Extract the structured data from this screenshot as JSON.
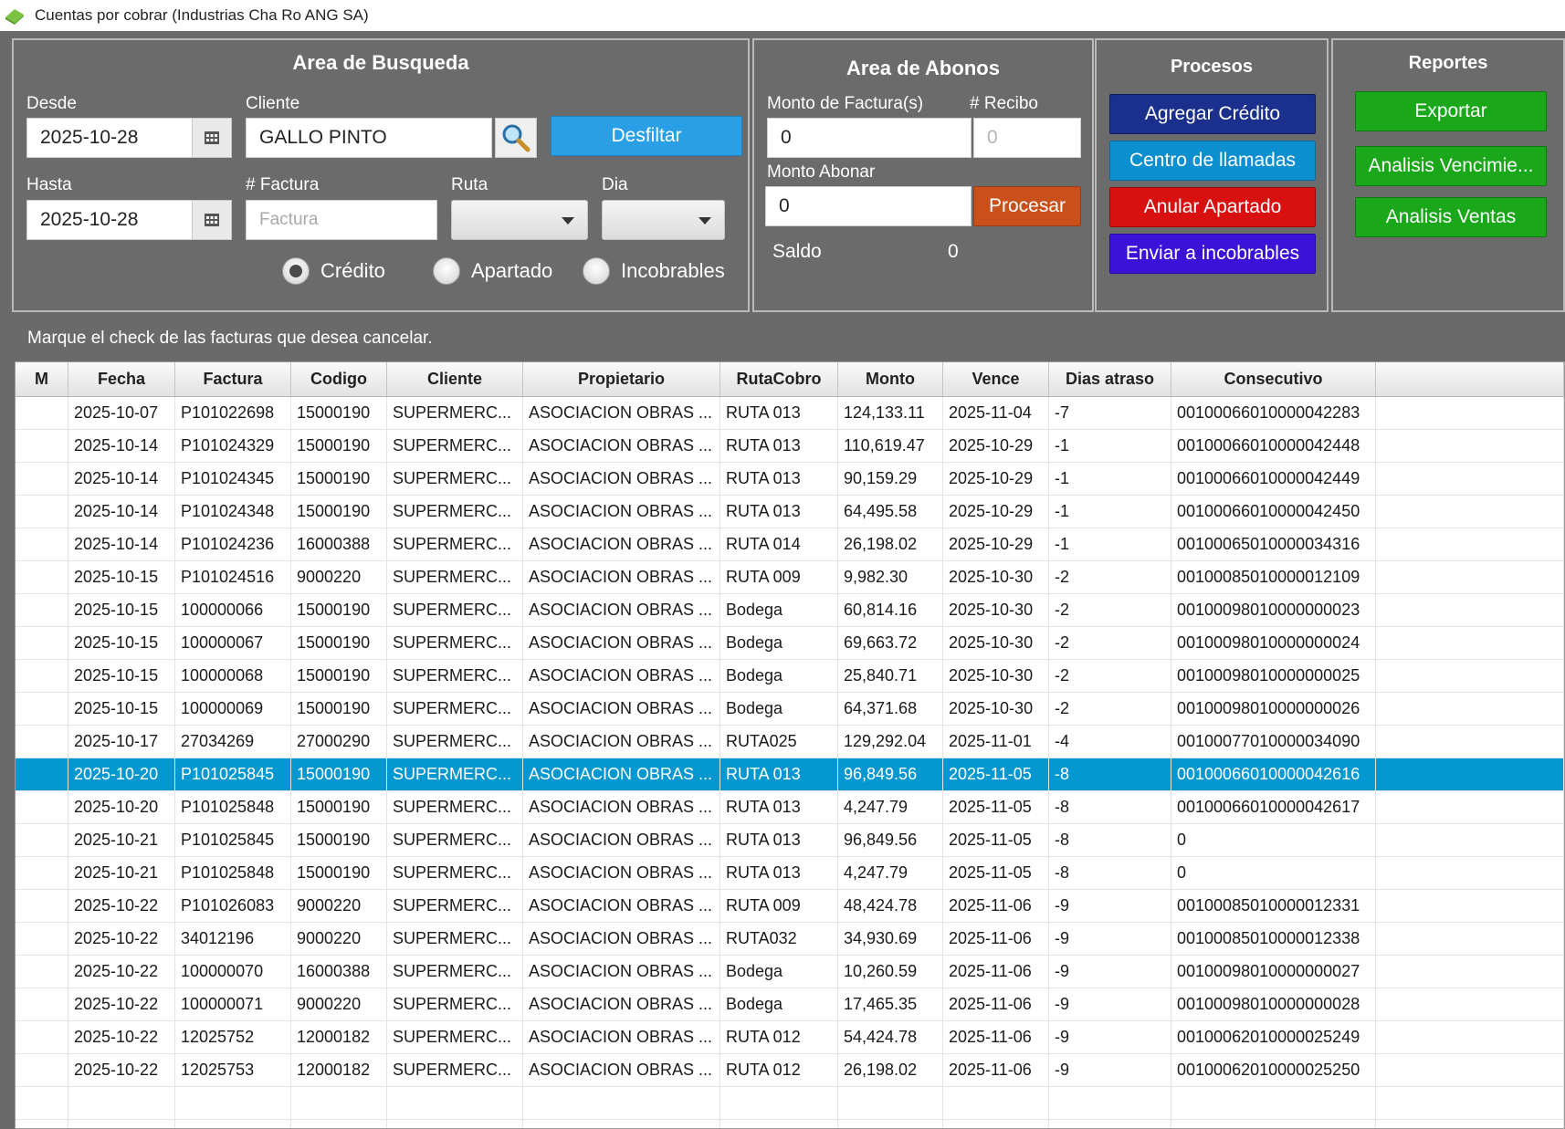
{
  "window": {
    "title": "Cuentas por cobrar (Industrias Cha Ro ANG SA)"
  },
  "busqueda": {
    "title": "Area de Busqueda",
    "desde_label": "Desde",
    "desde_value": "2025-10-28",
    "hasta_label": "Hasta",
    "hasta_value": "2025-10-28",
    "cliente_label": "Cliente",
    "cliente_value": "GALLO PINTO",
    "factura_label": "# Factura",
    "factura_placeholder": "Factura",
    "ruta_label": "Ruta",
    "dia_label": "Dia",
    "desfiltrar_label": "Desfiltar",
    "radios": [
      {
        "label": "Crédito",
        "selected": true
      },
      {
        "label": "Apartado",
        "selected": false
      },
      {
        "label": "Incobrables",
        "selected": false
      }
    ]
  },
  "abonos": {
    "title": "Area de Abonos",
    "monto_factura_label": "Monto de Factura(s)",
    "monto_factura_value": "0",
    "recibo_label": "# Recibo",
    "recibo_value": "0",
    "monto_abonar_label": "Monto Abonar",
    "monto_abonar_value": "0",
    "procesar_label": "Procesar",
    "saldo_label": "Saldo",
    "saldo_value": "0"
  },
  "procesos": {
    "title": "Procesos",
    "buttons": [
      "Agregar Crédito",
      "Centro de llamadas",
      "Anular Apartado",
      "Enviar a incobrables"
    ]
  },
  "reportes": {
    "title": "Reportes",
    "buttons": [
      "Exportar",
      "Analisis Vencimie...",
      "Analisis Ventas"
    ]
  },
  "hint": "Marque el check de las facturas que desea cancelar.",
  "colors": {
    "panel_bg": "#6b6b6b",
    "selected_row": "#0497d0",
    "btn_blue": "#1b2f8c",
    "btn_cyan": "#0b8fcf",
    "btn_red": "#d81010",
    "btn_purple": "#3b12d8",
    "btn_green": "#1aa81a",
    "btn_orange": "#c9501a",
    "btn_desfiltrar": "#2a9fe6"
  },
  "table": {
    "columns": [
      "M",
      "Fecha",
      "Factura",
      "Codigo",
      "Cliente",
      "Propietario",
      "RutaCobro",
      "Monto",
      "Vence",
      "Dias atraso",
      "Consecutivo"
    ],
    "selected_index": 11,
    "rows": [
      [
        "",
        "2025-10-07",
        "P101022698",
        "15000190",
        "SUPERMERC...",
        "ASOCIACION OBRAS ...",
        "RUTA 013",
        "124,133.11",
        "2025-11-04",
        "-7",
        "00100066010000042283"
      ],
      [
        "",
        "2025-10-14",
        "P101024329",
        "15000190",
        "SUPERMERC...",
        "ASOCIACION OBRAS ...",
        "RUTA 013",
        "110,619.47",
        "2025-10-29",
        "-1",
        "00100066010000042448"
      ],
      [
        "",
        "2025-10-14",
        "P101024345",
        "15000190",
        "SUPERMERC...",
        "ASOCIACION OBRAS ...",
        "RUTA 013",
        "90,159.29",
        "2025-10-29",
        "-1",
        "00100066010000042449"
      ],
      [
        "",
        "2025-10-14",
        "P101024348",
        "15000190",
        "SUPERMERC...",
        "ASOCIACION OBRAS ...",
        "RUTA 013",
        "64,495.58",
        "2025-10-29",
        "-1",
        "00100066010000042450"
      ],
      [
        "",
        "2025-10-14",
        "P101024236",
        "16000388",
        "SUPERMERC...",
        "ASOCIACION OBRAS ...",
        "RUTA 014",
        "26,198.02",
        "2025-10-29",
        "-1",
        "00100065010000034316"
      ],
      [
        "",
        "2025-10-15",
        "P101024516",
        "9000220",
        "SUPERMERC...",
        "ASOCIACION OBRAS ...",
        "RUTA 009",
        "9,982.30",
        "2025-10-30",
        "-2",
        "00100085010000012109"
      ],
      [
        "",
        "2025-10-15",
        "100000066",
        "15000190",
        "SUPERMERC...",
        "ASOCIACION OBRAS ...",
        "Bodega",
        "60,814.16",
        "2025-10-30",
        "-2",
        "00100098010000000023"
      ],
      [
        "",
        "2025-10-15",
        "100000067",
        "15000190",
        "SUPERMERC...",
        "ASOCIACION OBRAS ...",
        "Bodega",
        "69,663.72",
        "2025-10-30",
        "-2",
        "00100098010000000024"
      ],
      [
        "",
        "2025-10-15",
        "100000068",
        "15000190",
        "SUPERMERC...",
        "ASOCIACION OBRAS ...",
        "Bodega",
        "25,840.71",
        "2025-10-30",
        "-2",
        "00100098010000000025"
      ],
      [
        "",
        "2025-10-15",
        "100000069",
        "15000190",
        "SUPERMERC...",
        "ASOCIACION OBRAS ...",
        "Bodega",
        "64,371.68",
        "2025-10-30",
        "-2",
        "00100098010000000026"
      ],
      [
        "",
        "2025-10-17",
        "27034269",
        "27000290",
        "SUPERMERC...",
        "ASOCIACION OBRAS ...",
        "RUTA025",
        "129,292.04",
        "2025-11-01",
        "-4",
        "00100077010000034090"
      ],
      [
        "",
        "2025-10-20",
        "P101025845",
        "15000190",
        "SUPERMERC...",
        "ASOCIACION OBRAS ...",
        "RUTA 013",
        "96,849.56",
        "2025-11-05",
        "-8",
        "00100066010000042616"
      ],
      [
        "",
        "2025-10-20",
        "P101025848",
        "15000190",
        "SUPERMERC...",
        "ASOCIACION OBRAS ...",
        "RUTA 013",
        "4,247.79",
        "2025-11-05",
        "-8",
        "00100066010000042617"
      ],
      [
        "",
        "2025-10-21",
        "P101025845",
        "15000190",
        "SUPERMERC...",
        "ASOCIACION OBRAS ...",
        "RUTA 013",
        "96,849.56",
        "2025-11-05",
        "-8",
        "0"
      ],
      [
        "",
        "2025-10-21",
        "P101025848",
        "15000190",
        "SUPERMERC...",
        "ASOCIACION OBRAS ...",
        "RUTA 013",
        "4,247.79",
        "2025-11-05",
        "-8",
        "0"
      ],
      [
        "",
        "2025-10-22",
        "P101026083",
        "9000220",
        "SUPERMERC...",
        "ASOCIACION OBRAS ...",
        "RUTA 009",
        "48,424.78",
        "2025-11-06",
        "-9",
        "00100085010000012331"
      ],
      [
        "",
        "2025-10-22",
        "34012196",
        "9000220",
        "SUPERMERC...",
        "ASOCIACION OBRAS ...",
        "RUTA032",
        "34,930.69",
        "2025-11-06",
        "-9",
        "00100085010000012338"
      ],
      [
        "",
        "2025-10-22",
        "100000070",
        "16000388",
        "SUPERMERC...",
        "ASOCIACION OBRAS ...",
        "Bodega",
        "10,260.59",
        "2025-11-06",
        "-9",
        "00100098010000000027"
      ],
      [
        "",
        "2025-10-22",
        "100000071",
        "9000220",
        "SUPERMERC...",
        "ASOCIACION OBRAS ...",
        "Bodega",
        "17,465.35",
        "2025-11-06",
        "-9",
        "00100098010000000028"
      ],
      [
        "",
        "2025-10-22",
        "12025752",
        "12000182",
        "SUPERMERC...",
        "ASOCIACION OBRAS ...",
        "RUTA 012",
        "54,424.78",
        "2025-11-06",
        "-9",
        "00100062010000025249"
      ],
      [
        "",
        "2025-10-22",
        "12025753",
        "12000182",
        "SUPERMERC...",
        "ASOCIACION OBRAS ...",
        "RUTA 012",
        "26,198.02",
        "2025-11-06",
        "-9",
        "00100062010000025250"
      ],
      [
        "",
        "",
        "",
        "",
        "",
        "",
        "",
        "",
        "",
        "",
        ""
      ],
      [
        "",
        "",
        "",
        "",
        "",
        "",
        "",
        "",
        "",
        "",
        ""
      ]
    ]
  }
}
